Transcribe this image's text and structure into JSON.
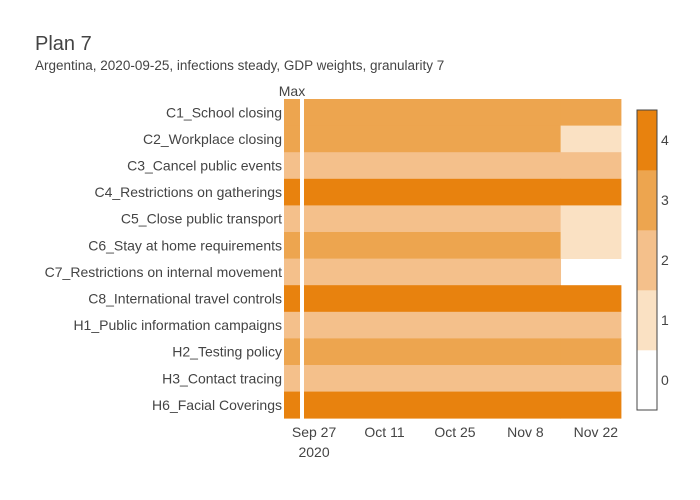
{
  "chart_data": {
    "type": "heatmap",
    "title": "Plan 7",
    "subtitle": "Argentina, 2020-09-25, infections steady, GDP weights, granularity 7",
    "max_column_label": "Max",
    "rows": [
      "C1_School closing",
      "C2_Workplace closing",
      "C3_Cancel public events",
      "C4_Restrictions on gatherings",
      "C5_Close public transport",
      "C6_Stay at home requirements",
      "C7_Restrictions on internal movement",
      "C8_International travel controls",
      "H1_Public information campaigns",
      "H2_Testing policy",
      "H3_Contact tracing",
      "H6_Facial Coverings"
    ],
    "max_values": [
      3,
      3,
      2,
      4,
      2,
      3,
      2,
      4,
      2,
      3,
      2,
      4
    ],
    "period_segments": [
      {
        "start": "2020-09-25",
        "end": "2020-11-15"
      },
      {
        "start": "2020-11-15",
        "end": "2020-11-27"
      }
    ],
    "values": [
      [
        3,
        3
      ],
      [
        3,
        1
      ],
      [
        2,
        2
      ],
      [
        4,
        4
      ],
      [
        2,
        1
      ],
      [
        3,
        1
      ],
      [
        2,
        null
      ],
      [
        4,
        4
      ],
      [
        2,
        2
      ],
      [
        3,
        3
      ],
      [
        2,
        2
      ],
      [
        4,
        4
      ]
    ],
    "x_ticks": [
      {
        "date": "2020-09-27",
        "label": "Sep 27",
        "sublabel": "2020"
      },
      {
        "date": "2020-10-11",
        "label": "Oct 11",
        "sublabel": ""
      },
      {
        "date": "2020-10-25",
        "label": "Oct 25",
        "sublabel": ""
      },
      {
        "date": "2020-11-08",
        "label": "Nov 8",
        "sublabel": ""
      },
      {
        "date": "2020-11-22",
        "label": "Nov 22",
        "sublabel": ""
      }
    ],
    "x_range": [
      "2020-09-25",
      "2020-11-27"
    ],
    "colorscale": {
      "levels": [
        0,
        1,
        2,
        3,
        4
      ],
      "colors": [
        "#ffffff",
        "#fae1c3",
        "#f4c08b",
        "#eda54f",
        "#e8820e"
      ],
      "tick_labels": [
        "0",
        "1",
        "2",
        "3",
        "4"
      ]
    }
  }
}
